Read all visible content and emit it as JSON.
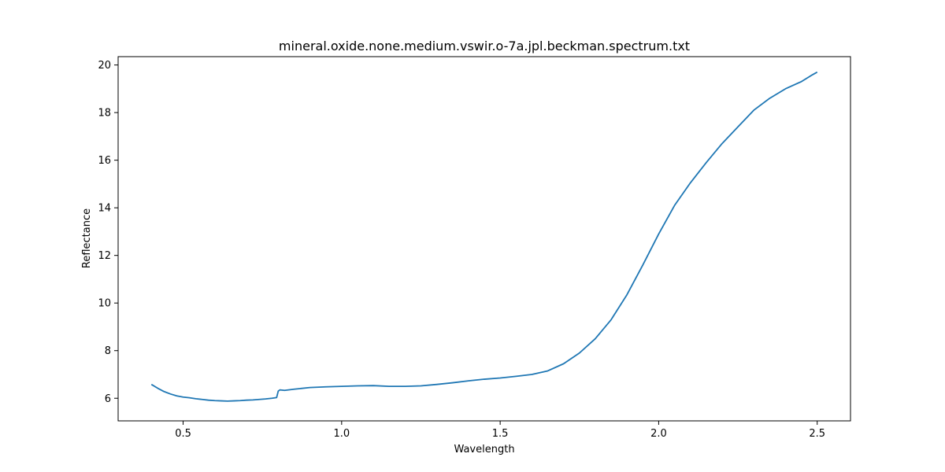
{
  "chart_data": {
    "type": "line",
    "title": "mineral.oxide.none.medium.vswir.o-7a.jpl.beckman.spectrum.txt",
    "xlabel": "Wavelength",
    "ylabel": "Reflectance",
    "xlim": [
      0.295,
      2.605
    ],
    "ylim": [
      5.05,
      20.35
    ],
    "xticks": [
      0.5,
      1.0,
      1.5,
      2.0,
      2.5
    ],
    "xtick_labels": [
      "0.5",
      "1.0",
      "1.5",
      "2.0",
      "2.5"
    ],
    "yticks": [
      6,
      8,
      10,
      12,
      14,
      16,
      18,
      20
    ],
    "ytick_labels": [
      "6",
      "8",
      "10",
      "12",
      "14",
      "16",
      "18",
      "20"
    ],
    "grid": false,
    "line_color": "#1f77b4",
    "series": [
      {
        "name": "spectrum",
        "x": [
          0.4,
          0.42,
          0.44,
          0.46,
          0.48,
          0.5,
          0.52,
          0.54,
          0.56,
          0.58,
          0.6,
          0.62,
          0.64,
          0.66,
          0.68,
          0.7,
          0.72,
          0.74,
          0.76,
          0.78,
          0.795,
          0.8,
          0.805,
          0.82,
          0.85,
          0.9,
          0.95,
          1.0,
          1.05,
          1.1,
          1.15,
          1.2,
          1.25,
          1.3,
          1.35,
          1.4,
          1.45,
          1.5,
          1.55,
          1.6,
          1.65,
          1.7,
          1.75,
          1.8,
          1.85,
          1.9,
          1.95,
          2.0,
          2.05,
          2.1,
          2.15,
          2.2,
          2.25,
          2.3,
          2.35,
          2.4,
          2.45,
          2.48,
          2.5
        ],
        "y": [
          6.58,
          6.42,
          6.28,
          6.18,
          6.1,
          6.05,
          6.02,
          5.98,
          5.95,
          5.92,
          5.9,
          5.89,
          5.88,
          5.89,
          5.9,
          5.92,
          5.93,
          5.95,
          5.97,
          6.0,
          6.03,
          6.3,
          6.35,
          6.33,
          6.38,
          6.45,
          6.48,
          6.5,
          6.52,
          6.53,
          6.5,
          6.5,
          6.52,
          6.58,
          6.65,
          6.73,
          6.8,
          6.85,
          6.92,
          7.0,
          7.15,
          7.45,
          7.9,
          8.5,
          9.3,
          10.35,
          11.6,
          12.9,
          14.1,
          15.05,
          15.9,
          16.7,
          17.4,
          18.1,
          18.6,
          19.0,
          19.3,
          19.55,
          19.7
        ]
      }
    ]
  }
}
